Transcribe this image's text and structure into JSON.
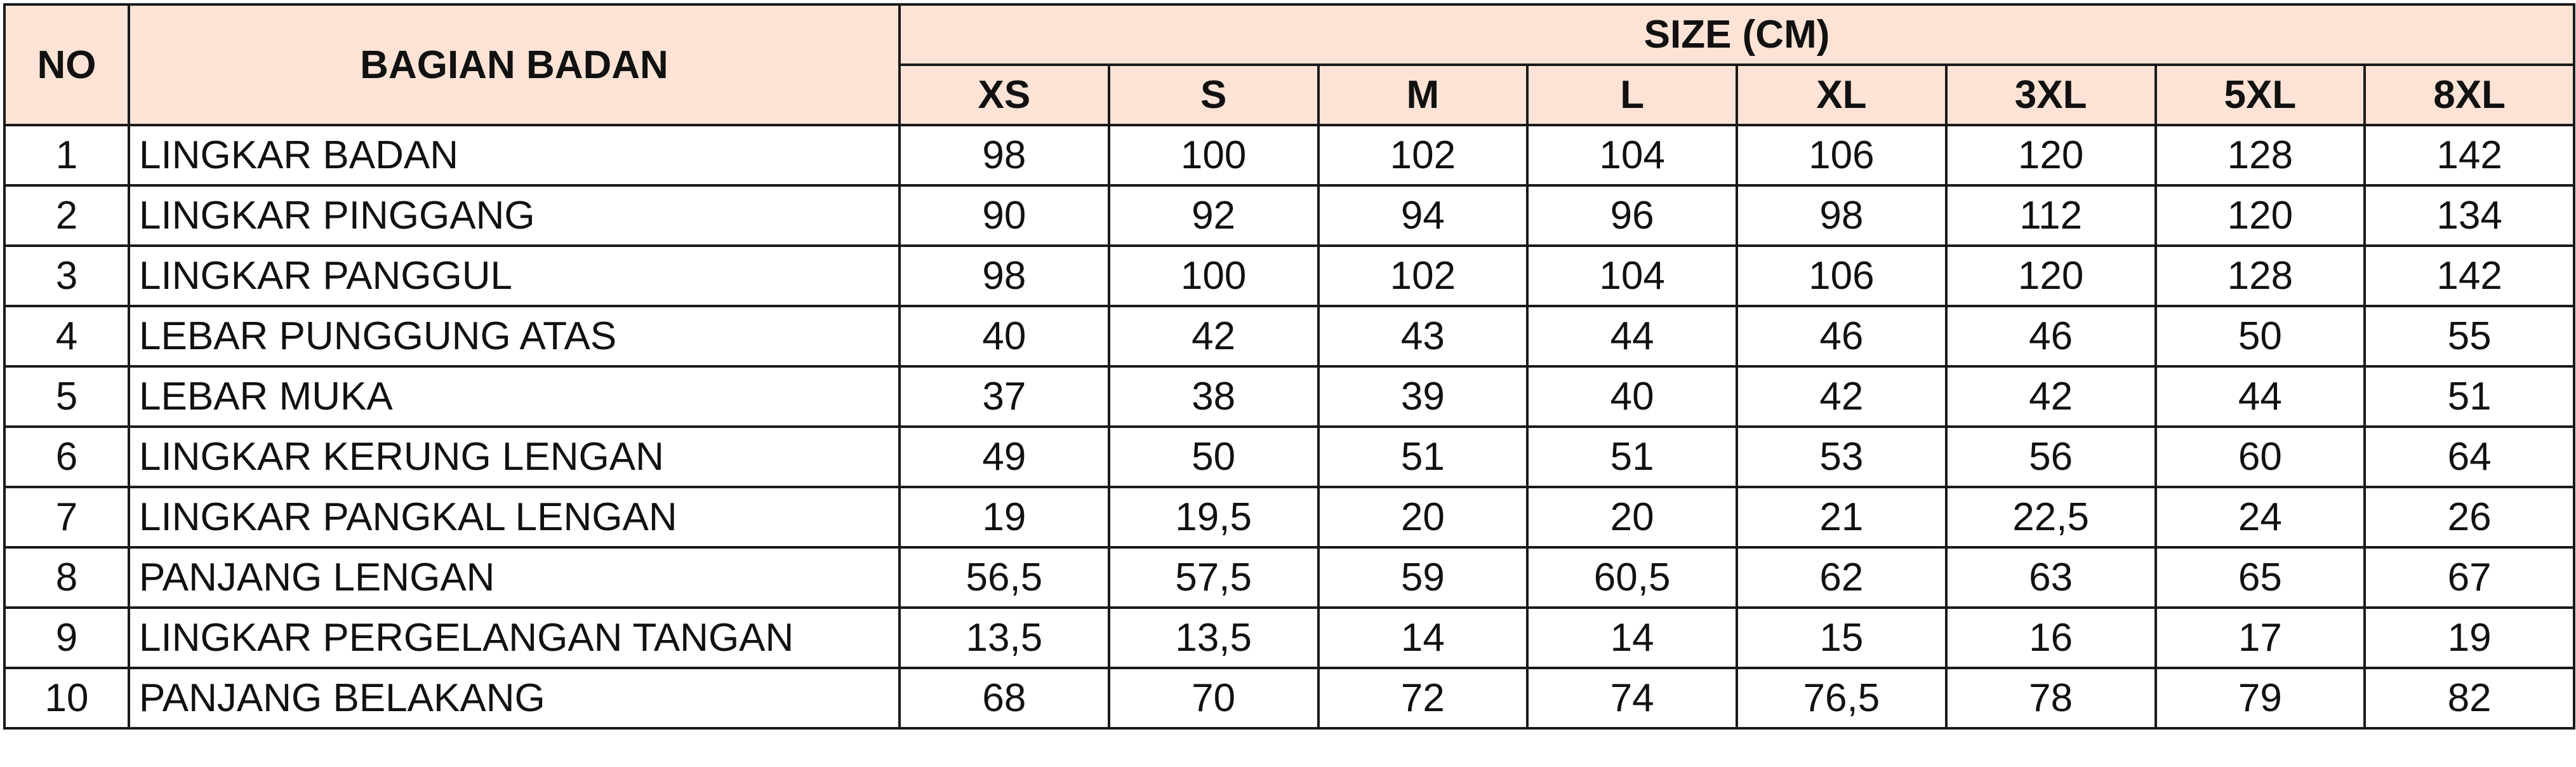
{
  "table": {
    "header": {
      "no": "NO",
      "part": "BAGIAN BADAN",
      "size_group": "SIZE (CM)",
      "sizes": [
        "XS",
        "S",
        "M",
        "L",
        "XL",
        "3XL",
        "5XL",
        "8XL"
      ]
    },
    "rows": [
      {
        "no": "1",
        "part": "LINGKAR BADAN",
        "values": [
          "98",
          "100",
          "102",
          "104",
          "106",
          "120",
          "128",
          "142"
        ]
      },
      {
        "no": "2",
        "part": "LINGKAR PINGGANG",
        "values": [
          "90",
          "92",
          "94",
          "96",
          "98",
          "112",
          "120",
          "134"
        ]
      },
      {
        "no": "3",
        "part": "LINGKAR PANGGUL",
        "values": [
          "98",
          "100",
          "102",
          "104",
          "106",
          "120",
          "128",
          "142"
        ]
      },
      {
        "no": "4",
        "part": "LEBAR PUNGGUNG ATAS",
        "values": [
          "40",
          "42",
          "43",
          "44",
          "46",
          "46",
          "50",
          "55"
        ]
      },
      {
        "no": "5",
        "part": "LEBAR MUKA",
        "values": [
          "37",
          "38",
          "39",
          "40",
          "42",
          "42",
          "44",
          "51"
        ]
      },
      {
        "no": "6",
        "part": "LINGKAR KERUNG LENGAN",
        "values": [
          "49",
          "50",
          "51",
          "51",
          "53",
          "56",
          "60",
          "64"
        ]
      },
      {
        "no": "7",
        "part": "LINGKAR PANGKAL LENGAN",
        "values": [
          "19",
          "19,5",
          "20",
          "20",
          "21",
          "22,5",
          "24",
          "26"
        ]
      },
      {
        "no": "8",
        "part": "PANJANG LENGAN",
        "values": [
          "56,5",
          "57,5",
          "59",
          "60,5",
          "62",
          "63",
          "65",
          "67"
        ]
      },
      {
        "no": "9",
        "part": "LINGKAR PERGELANGAN TANGAN",
        "values": [
          "13,5",
          "13,5",
          "14",
          "14",
          "15",
          "16",
          "17",
          "19"
        ]
      },
      {
        "no": "10",
        "part": "PANJANG BELAKANG",
        "values": [
          "68",
          "70",
          "72",
          "74",
          "76,5",
          "78",
          "79",
          "82"
        ]
      }
    ]
  },
  "colors": {
    "header_bg": "#fde3d5",
    "border": "#1a1a1a"
  }
}
